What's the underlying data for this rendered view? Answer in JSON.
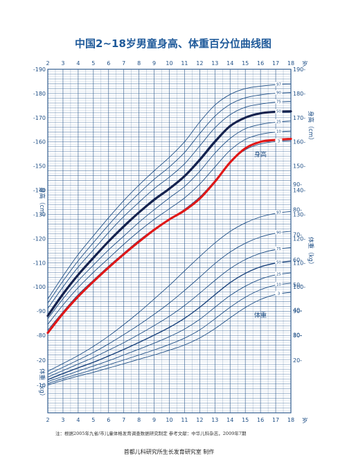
{
  "chart_data": {
    "type": "line",
    "title": "中国2~18岁男童身高、体重百分位曲线图",
    "x_unit": "岁",
    "x_ticks": [
      2,
      3,
      4,
      5,
      6,
      7,
      8,
      9,
      10,
      11,
      12,
      13,
      14,
      15,
      16,
      17,
      18
    ],
    "xlim": [
      2,
      18
    ],
    "height_axis": {
      "label": "身高（cm）",
      "ticks": [
        80,
        90,
        100,
        110,
        120,
        130,
        140,
        150,
        160,
        170,
        180,
        190
      ],
      "ylim": [
        75,
        190
      ]
    },
    "weight_axis_left": {
      "label": "体重（kg）",
      "ticks": [
        10,
        20
      ],
      "ylim": [
        6,
        30
      ]
    },
    "weight_axis_right": {
      "label": "体重（kg）",
      "ticks": [
        20,
        30,
        40,
        50,
        60,
        70,
        80,
        90
      ],
      "ylim": [
        6,
        95
      ]
    },
    "curve_labels": {
      "height": "身高",
      "weight": "体重"
    },
    "percentile_labels": [
      "3",
      "10",
      "25",
      "50",
      "75",
      "90",
      "97"
    ],
    "x": [
      2,
      3,
      4,
      5,
      6,
      7,
      8,
      9,
      10,
      11,
      12,
      13,
      14,
      15,
      16,
      17,
      18
    ],
    "height_percentiles": [
      {
        "name": "3",
        "values": [
          82.1,
          89.7,
          96.8,
          102.8,
          108.6,
          114.0,
          119.3,
          123.9,
          127.9,
          132.1,
          137.2,
          144.0,
          151.5,
          156.7,
          159.1,
          160.1,
          160.5
        ]
      },
      {
        "name": "10",
        "values": [
          84.5,
          92.5,
          99.7,
          106.0,
          111.8,
          117.6,
          123.0,
          127.9,
          132.3,
          136.8,
          142.5,
          149.6,
          156.5,
          161.0,
          163.1,
          164.0,
          164.5
        ]
      },
      {
        "name": "25",
        "values": [
          86.8,
          95.1,
          102.5,
          109.0,
          115.3,
          121.0,
          126.7,
          131.9,
          136.8,
          141.5,
          147.8,
          155.3,
          161.4,
          165.4,
          167.2,
          168.1,
          168.6
        ]
      },
      {
        "name": "50",
        "values": [
          88.5,
          97.5,
          105.3,
          112.4,
          119.0,
          125.4,
          131.0,
          136.4,
          140.9,
          146.1,
          153.0,
          160.5,
          166.5,
          170.0,
          171.6,
          172.3,
          172.7
        ]
      },
      {
        "name": "75",
        "values": [
          91.1,
          100.0,
          108.2,
          115.3,
          122.5,
          129.1,
          135.0,
          140.6,
          145.4,
          150.9,
          158.3,
          165.8,
          171.2,
          174.3,
          175.6,
          176.4,
          176.7
        ]
      },
      {
        "name": "90",
        "values": [
          93.3,
          102.4,
          110.8,
          118.3,
          125.6,
          132.5,
          138.7,
          144.5,
          149.6,
          155.6,
          163.4,
          170.6,
          175.5,
          178.2,
          179.4,
          180.1,
          180.4
        ]
      },
      {
        "name": "97",
        "values": [
          95.0,
          104.5,
          113.4,
          121.1,
          128.6,
          135.7,
          142.1,
          148.0,
          153.6,
          160.0,
          168.2,
          175.2,
          179.6,
          182.0,
          183.0,
          183.6,
          183.9
        ]
      }
    ],
    "weight_percentiles": [
      {
        "name": "3",
        "values": [
          10.0,
          11.9,
          13.6,
          15.1,
          16.8,
          18.5,
          20.3,
          22.0,
          23.9,
          26.0,
          28.8,
          32.5,
          36.8,
          40.9,
          44.1,
          46.1,
          47.0
        ]
      },
      {
        "name": "10",
        "values": [
          10.6,
          12.6,
          14.4,
          16.2,
          18.1,
          20.0,
          22.0,
          24.0,
          26.2,
          28.7,
          32.0,
          36.4,
          41.0,
          45.0,
          48.0,
          49.8,
          50.6
        ]
      },
      {
        "name": "25",
        "values": [
          11.4,
          13.5,
          15.6,
          17.6,
          19.7,
          22.0,
          24.3,
          26.7,
          29.3,
          32.3,
          36.2,
          41.0,
          45.7,
          49.4,
          52.2,
          53.9,
          54.7
        ]
      },
      {
        "name": "50",
        "values": [
          12.2,
          14.6,
          16.9,
          19.1,
          21.6,
          24.2,
          27.0,
          29.9,
          33.0,
          36.6,
          41.0,
          46.0,
          50.8,
          54.5,
          57.1,
          58.6,
          59.4
        ]
      },
      {
        "name": "75",
        "values": [
          13.2,
          15.8,
          18.4,
          21.0,
          23.9,
          26.9,
          30.2,
          33.7,
          37.4,
          41.7,
          46.6,
          51.7,
          56.4,
          60.0,
          62.5,
          64.0,
          64.8
        ]
      },
      {
        "name": "90",
        "values": [
          14.3,
          17.1,
          20.0,
          23.0,
          26.4,
          30.1,
          34.0,
          38.2,
          42.7,
          47.7,
          53.0,
          58.4,
          63.0,
          66.5,
          69.0,
          70.5,
          71.3
        ]
      },
      {
        "name": "97",
        "values": [
          15.5,
          18.6,
          21.8,
          25.4,
          29.5,
          34.1,
          39.0,
          44.3,
          49.7,
          55.5,
          61.2,
          66.6,
          71.2,
          74.6,
          77.0,
          78.4,
          79.2
        ]
      }
    ],
    "highlight_series": [
      {
        "name": "",
        "color": "#15224e",
        "values": [
          88.0,
          97.0,
          105.0,
          112.0,
          118.8,
          125.0,
          130.8,
          136.0,
          140.6,
          145.8,
          152.5,
          160.0,
          166.5,
          170.0,
          171.8,
          172.4,
          172.6
        ]
      },
      {
        "name": "",
        "color": "#e01818",
        "values": [
          81.0,
          89.0,
          96.0,
          102.2,
          108.0,
          113.5,
          118.7,
          123.6,
          127.9,
          131.6,
          136.5,
          143.5,
          151.5,
          157.3,
          160.0,
          160.8,
          161.2
        ]
      }
    ],
    "grid": true,
    "colors": {
      "grid": "#1f4f86",
      "percentile": "#1f4f86",
      "median": "#17407a",
      "dark_highlight": "#15224e",
      "red_highlight": "#e01818"
    }
  },
  "footer": {
    "note": "注：根据2005年九省/市儿童体格发育调查数据研究制定          参考文献：中华儿科杂志，2009年7期",
    "credit": "首都儿科研究所生长发育研究室 制作"
  }
}
